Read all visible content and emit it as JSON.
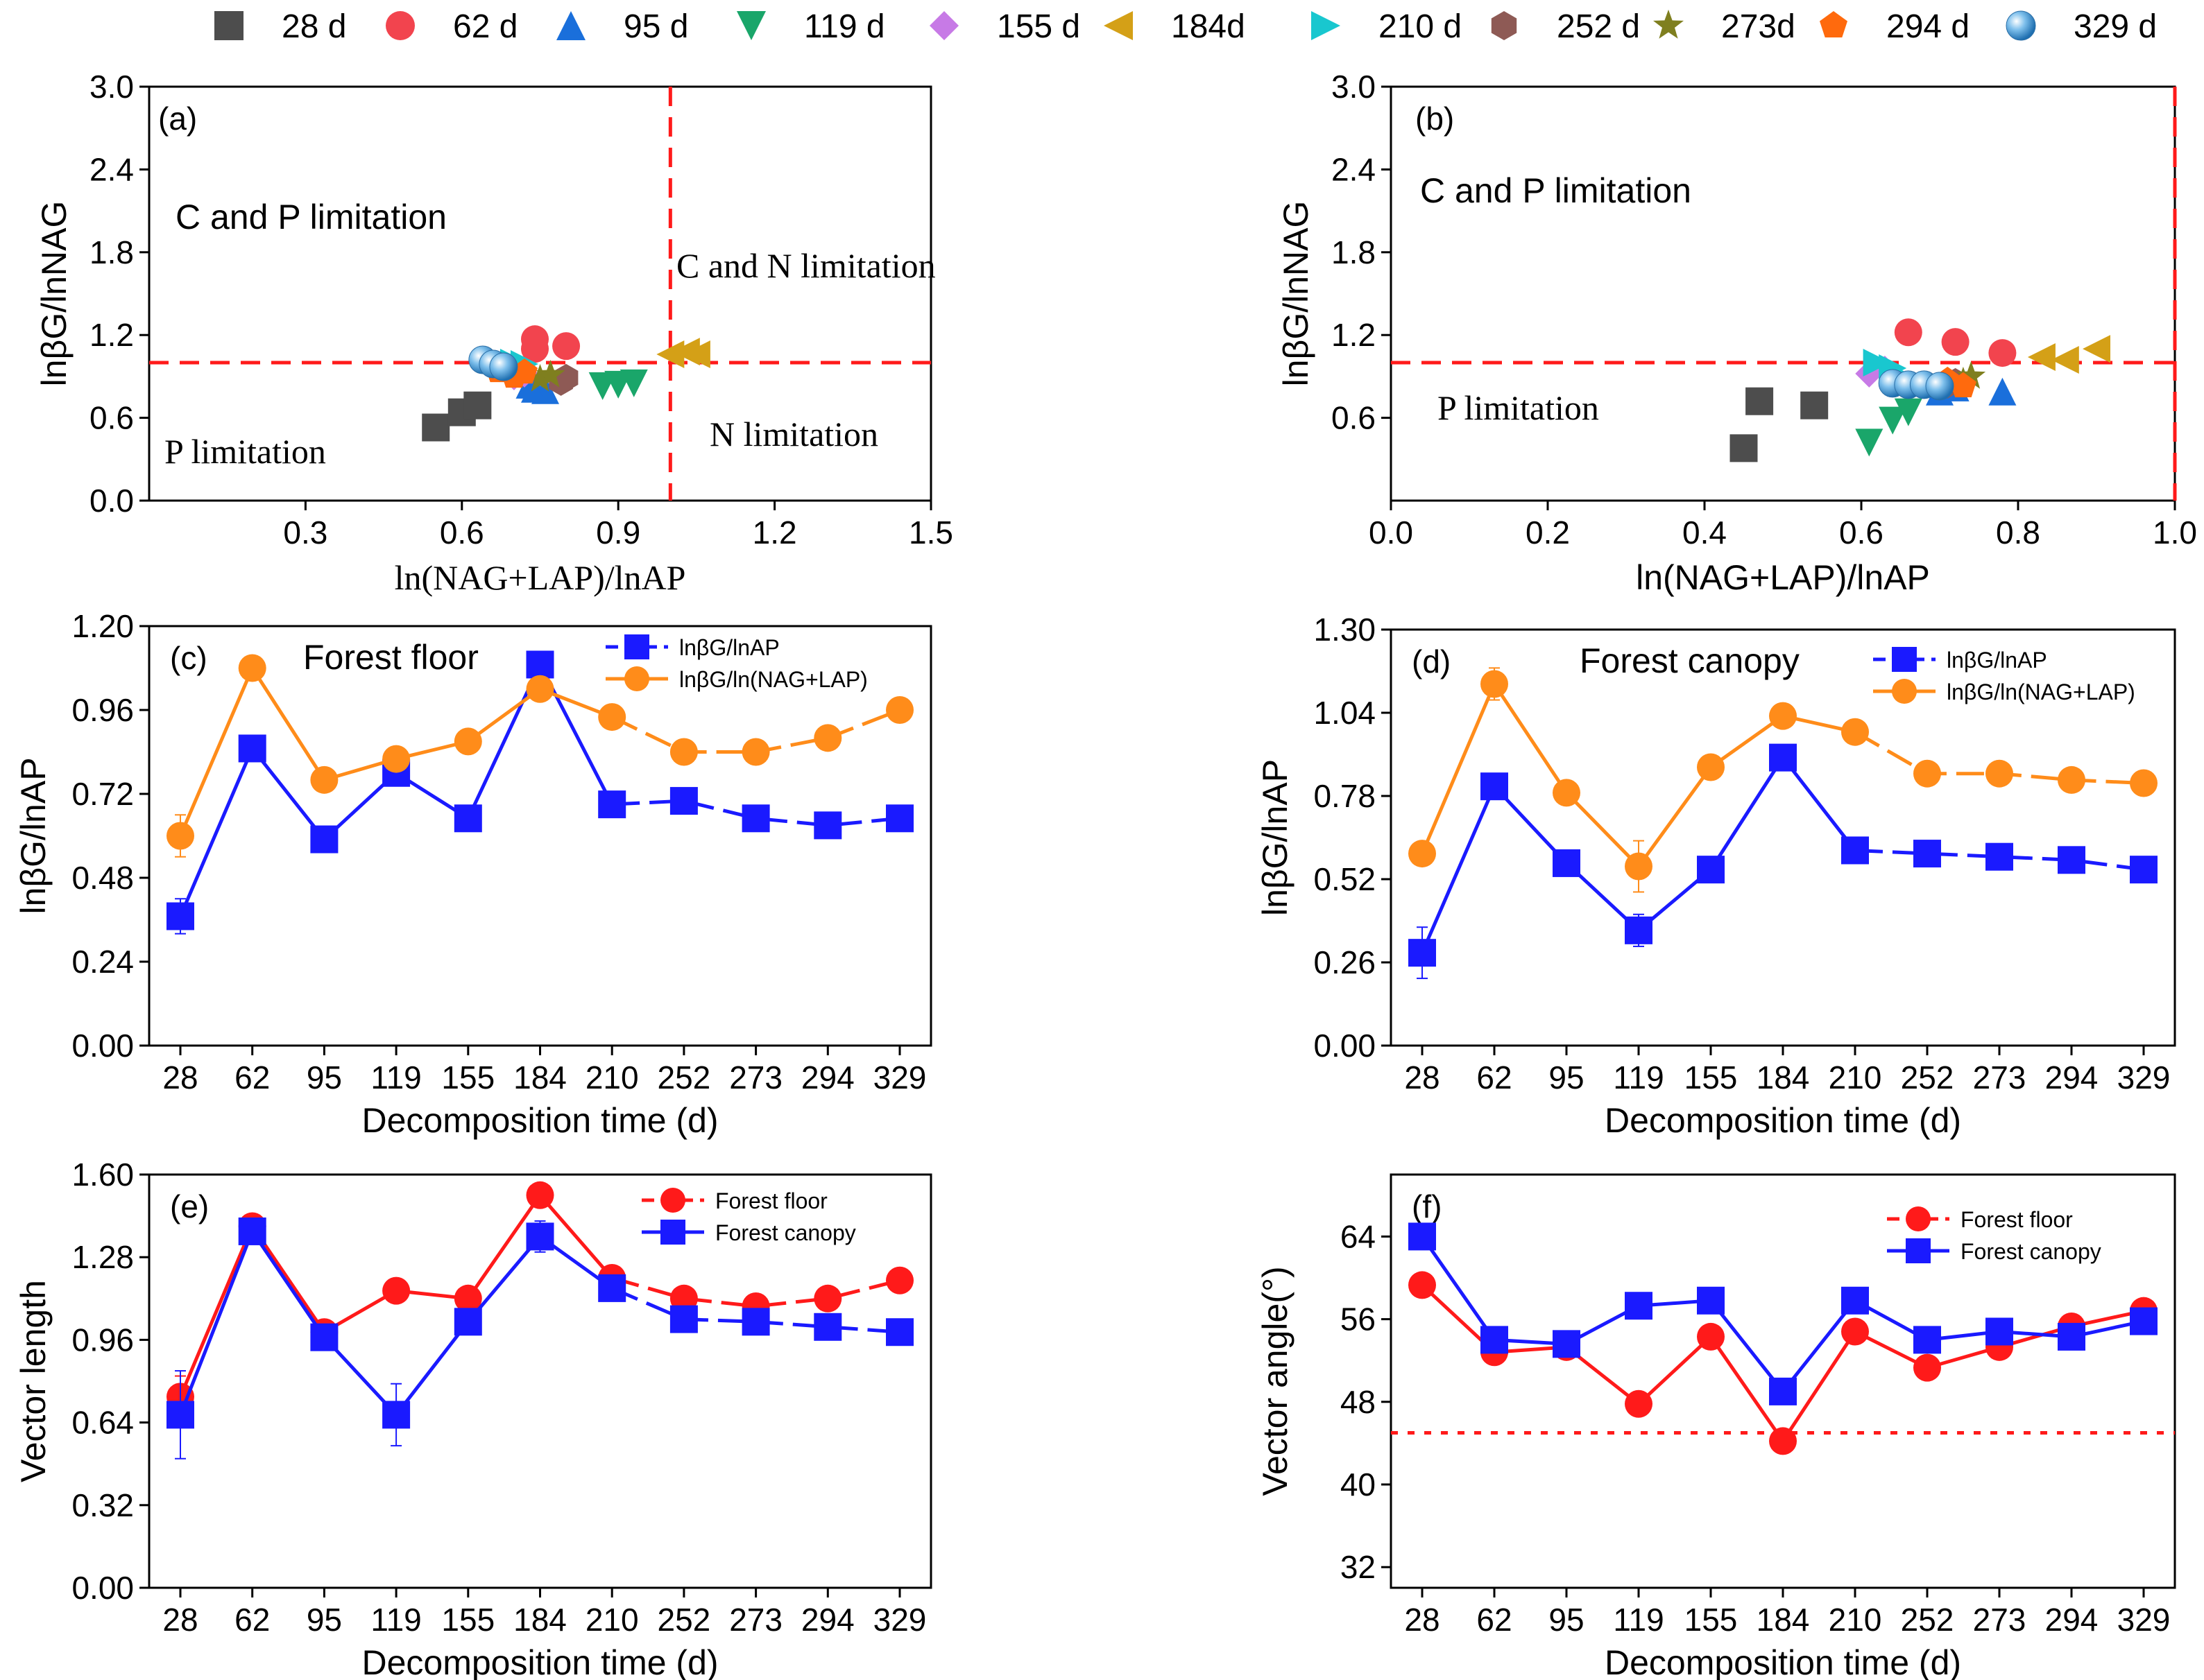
{
  "top_legend": [
    {
      "label": "28 d",
      "marker": "square",
      "color": "#4d4d4d"
    },
    {
      "label": "62 d",
      "marker": "circle",
      "color": "#f2444e"
    },
    {
      "label": "95 d",
      "marker": "triangle-up",
      "color": "#1a6fdb"
    },
    {
      "label": "119 d",
      "marker": "triangle-down",
      "color": "#1aa66a"
    },
    {
      "label": "155 d",
      "marker": "diamond",
      "color": "#c77ae6"
    },
    {
      "label": "184d",
      "marker": "triangle-left",
      "color": "#d4a017"
    },
    {
      "label": "210 d",
      "marker": "triangle-right",
      "color": "#19c7cf"
    },
    {
      "label": "252 d",
      "marker": "hexagon",
      "color": "#8e5a55"
    },
    {
      "label": "273d",
      "marker": "star",
      "color": "#7f7f1f"
    },
    {
      "label": "294 d",
      "marker": "pentagon",
      "color": "#ff6a0d"
    },
    {
      "label": "329 d",
      "marker": "sphere",
      "color": "#3a8fd0"
    }
  ],
  "chart_data": [
    {
      "id": "a",
      "type": "scatter",
      "panel_label": "(a)",
      "xlabel": "ln(NAG+LAP)/lnAP",
      "ylabel": "lnβG/lnNAG",
      "xlim": [
        0,
        1.5
      ],
      "ylim": [
        0,
        3.0
      ],
      "xticks": [
        "0.3",
        "0.6",
        "0.9",
        "1.2",
        "1.5"
      ],
      "yticks": [
        "0.0",
        "0.6",
        "1.2",
        "1.8",
        "2.4",
        "3.0"
      ],
      "vline": 1.0,
      "hline": 1.0,
      "regions": {
        "upper_left": "C and P limitation",
        "upper_right": "C and N limitation",
        "lower_left": "P limitation",
        "lower_right": "N limitation"
      },
      "groups": [
        {
          "day": "28 d",
          "points": [
            [
              0.55,
              0.53
            ],
            [
              0.6,
              0.64
            ],
            [
              0.63,
              0.69
            ]
          ]
        },
        {
          "day": "62 d",
          "points": [
            [
              0.74,
              1.17
            ],
            [
              0.74,
              1.1
            ],
            [
              0.8,
              1.12
            ]
          ]
        },
        {
          "day": "95 d",
          "points": [
            [
              0.74,
              0.81
            ],
            [
              0.76,
              0.8
            ],
            [
              0.73,
              0.84
            ]
          ]
        },
        {
          "day": "119 d",
          "points": [
            [
              0.87,
              0.83
            ],
            [
              0.9,
              0.84
            ],
            [
              0.93,
              0.85
            ]
          ]
        },
        {
          "day": "155 d",
          "points": [
            [
              0.7,
              0.9
            ],
            [
              0.72,
              0.92
            ]
          ]
        },
        {
          "day": "184d",
          "points": [
            [
              1.0,
              1.06
            ],
            [
              1.03,
              1.08
            ],
            [
              1.05,
              1.06
            ]
          ]
        },
        {
          "day": "210 d",
          "points": [
            [
              0.69,
              0.97
            ],
            [
              0.72,
              0.99
            ],
            [
              0.7,
              1.0
            ]
          ]
        },
        {
          "day": "252 d",
          "points": [
            [
              0.79,
              0.86
            ],
            [
              0.8,
              0.89
            ]
          ]
        },
        {
          "day": "273d",
          "points": [
            [
              0.75,
              0.88
            ],
            [
              0.77,
              0.91
            ]
          ]
        },
        {
          "day": "294 d",
          "points": [
            [
              0.67,
              0.94
            ],
            [
              0.7,
              0.9
            ],
            [
              0.72,
              0.93
            ]
          ]
        },
        {
          "day": "329 d",
          "points": [
            [
              0.64,
              1.02
            ],
            [
              0.66,
              0.99
            ],
            [
              0.68,
              0.97
            ]
          ]
        }
      ]
    },
    {
      "id": "b",
      "type": "scatter",
      "panel_label": "(b)",
      "xlabel": "ln(NAG+LAP)/lnAP",
      "ylabel": "lnβG/lnNAG",
      "xlim": [
        0,
        1.0
      ],
      "ylim": [
        0,
        3.0
      ],
      "xticks": [
        "0.0",
        "0.2",
        "0.4",
        "0.6",
        "0.8",
        "1.0"
      ],
      "yticks": [
        "0.6",
        "1.2",
        "1.8",
        "2.4",
        "3.0"
      ],
      "vline": 1.0,
      "hline": 1.0,
      "regions": {
        "upper_left": "C and P limitation",
        "lower_left": "P limitation"
      },
      "groups": [
        {
          "day": "28 d",
          "points": [
            [
              0.45,
              0.38
            ],
            [
              0.47,
              0.72
            ],
            [
              0.54,
              0.69
            ]
          ]
        },
        {
          "day": "62 d",
          "points": [
            [
              0.66,
              1.22
            ],
            [
              0.72,
              1.15
            ],
            [
              0.78,
              1.07
            ]
          ]
        },
        {
          "day": "95 d",
          "points": [
            [
              0.7,
              0.79
            ],
            [
              0.78,
              0.79
            ],
            [
              0.72,
              0.82
            ]
          ]
        },
        {
          "day": "119 d",
          "points": [
            [
              0.61,
              0.42
            ],
            [
              0.64,
              0.58
            ],
            [
              0.66,
              0.64
            ]
          ]
        },
        {
          "day": "155 d",
          "points": [
            [
              0.61,
              0.92
            ],
            [
              0.63,
              0.95
            ]
          ]
        },
        {
          "day": "184d",
          "points": [
            [
              0.83,
              1.04
            ],
            [
              0.86,
              1.02
            ],
            [
              0.9,
              1.1
            ]
          ]
        },
        {
          "day": "210 d",
          "points": [
            [
              0.62,
              1.0
            ],
            [
              0.64,
              0.96
            ],
            [
              0.65,
              0.9
            ]
          ]
        },
        {
          "day": "252 d",
          "points": [
            [
              0.71,
              0.84
            ],
            [
              0.72,
              0.86
            ]
          ]
        },
        {
          "day": "273d",
          "points": [
            [
              0.73,
              0.86
            ],
            [
              0.74,
              0.9
            ]
          ]
        },
        {
          "day": "294 d",
          "points": [
            [
              0.71,
              0.87
            ],
            [
              0.73,
              0.83
            ]
          ]
        },
        {
          "day": "329 d",
          "points": [
            [
              0.64,
              0.85
            ],
            [
              0.66,
              0.84
            ],
            [
              0.68,
              0.84
            ],
            [
              0.7,
              0.83
            ]
          ]
        }
      ]
    },
    {
      "id": "c",
      "type": "line",
      "panel_label": "(c)",
      "title": "Forest floor",
      "xlabel": "Decomposition time (d)",
      "ylabel": "lnβG/lnAP",
      "categories": [
        "28",
        "62",
        "95",
        "119",
        "155",
        "184",
        "210",
        "252",
        "273",
        "294",
        "329"
      ],
      "ylim": [
        0,
        1.2
      ],
      "yticks": [
        "0.00",
        "0.24",
        "0.48",
        "0.72",
        "0.96",
        "1.20"
      ],
      "series": [
        {
          "name": "lnβG/lnAP",
          "color": "#1a1aff",
          "marker": "square",
          "values": [
            0.37,
            0.85,
            0.59,
            0.78,
            0.65,
            1.09,
            0.69,
            0.7,
            0.65,
            0.63,
            0.65
          ],
          "err": [
            0.05,
            0,
            0,
            0,
            0,
            0,
            0,
            0,
            0,
            0,
            0
          ]
        },
        {
          "name": "lnβG/ln(NAG+LAP)",
          "color": "#ff8c1a",
          "marker": "circle",
          "values": [
            0.6,
            1.08,
            0.76,
            0.82,
            0.87,
            1.02,
            0.94,
            0.84,
            0.84,
            0.88,
            0.96
          ],
          "err": [
            0.06,
            0,
            0,
            0,
            0,
            0,
            0,
            0,
            0,
            0,
            0
          ]
        }
      ]
    },
    {
      "id": "d",
      "type": "line",
      "panel_label": "(d)",
      "title": "Forest canopy",
      "xlabel": "Decomposition time (d)",
      "ylabel": "lnβG/lnAP",
      "categories": [
        "28",
        "62",
        "95",
        "119",
        "155",
        "184",
        "210",
        "252",
        "273",
        "294",
        "329"
      ],
      "ylim": [
        0,
        1.3
      ],
      "yticks": [
        "0.00",
        "0.26",
        "0.52",
        "0.78",
        "1.04",
        "1.30"
      ],
      "series": [
        {
          "name": "lnβG/lnAP",
          "color": "#1a1aff",
          "marker": "square",
          "values": [
            0.29,
            0.81,
            0.57,
            0.36,
            0.55,
            0.9,
            0.61,
            0.6,
            0.59,
            0.58,
            0.55
          ],
          "err": [
            0.08,
            0,
            0,
            0.05,
            0,
            0.04,
            0,
            0,
            0,
            0,
            0
          ]
        },
        {
          "name": "lnβG/ln(NAG+LAP)",
          "color": "#ff8c1a",
          "marker": "circle",
          "values": [
            0.6,
            1.13,
            0.79,
            0.56,
            0.87,
            1.03,
            0.98,
            0.85,
            0.85,
            0.83,
            0.82
          ],
          "err": [
            0,
            0.05,
            0,
            0.08,
            0,
            0,
            0,
            0,
            0,
            0,
            0
          ]
        }
      ]
    },
    {
      "id": "e",
      "type": "line",
      "panel_label": "(e)",
      "xlabel": "Decomposition time (d)",
      "ylabel": "Vector length",
      "categories": [
        "28",
        "62",
        "95",
        "119",
        "155",
        "184",
        "210",
        "252",
        "273",
        "294",
        "329"
      ],
      "ylim": [
        0,
        1.6
      ],
      "yticks": [
        "0.00",
        "0.32",
        "0.64",
        "0.96",
        "1.28",
        "1.60"
      ],
      "series": [
        {
          "name": "Forest floor",
          "color": "#ff1a1a",
          "marker": "circle",
          "values": [
            0.74,
            1.4,
            0.99,
            1.15,
            1.12,
            1.52,
            1.2,
            1.12,
            1.09,
            1.12,
            1.19
          ],
          "err": [
            0.08,
            0,
            0,
            0,
            0,
            0,
            0,
            0,
            0,
            0,
            0
          ]
        },
        {
          "name": "Forest canopy",
          "color": "#1a1aff",
          "marker": "square",
          "values": [
            0.67,
            1.38,
            0.97,
            0.67,
            1.03,
            1.36,
            1.16,
            1.04,
            1.03,
            1.01,
            0.99
          ],
          "err": [
            0.17,
            0,
            0,
            0.12,
            0,
            0.06,
            0,
            0,
            0,
            0,
            0
          ]
        }
      ]
    },
    {
      "id": "f",
      "type": "line",
      "panel_label": "(f)",
      "xlabel": "Decomposition time (d)",
      "ylabel": "Vector angle(°)",
      "categories": [
        "28",
        "62",
        "95",
        "119",
        "155",
        "184",
        "210",
        "252",
        "273",
        "294",
        "329"
      ],
      "ylim": [
        30,
        70
      ],
      "yticks": [
        "32",
        "40",
        "48",
        "56",
        "64"
      ],
      "hline": 45,
      "series": [
        {
          "name": "Forest floor",
          "color": "#ff1a1a",
          "marker": "circle",
          "values": [
            59.3,
            52.8,
            53.3,
            47.8,
            54.3,
            44.2,
            54.8,
            51.3,
            53.3,
            55.3,
            56.8
          ],
          "err": [
            0,
            0,
            0,
            0,
            0,
            0,
            0,
            0,
            0,
            0,
            0
          ]
        },
        {
          "name": "Forest canopy",
          "color": "#1a1aff",
          "marker": "square",
          "values": [
            64.0,
            54.0,
            53.6,
            57.3,
            57.8,
            49.0,
            57.8,
            54.0,
            54.8,
            54.3,
            55.8
          ],
          "err": [
            1.2,
            1.0,
            0,
            0,
            0,
            0,
            0,
            0,
            0,
            0,
            0
          ]
        }
      ]
    }
  ]
}
